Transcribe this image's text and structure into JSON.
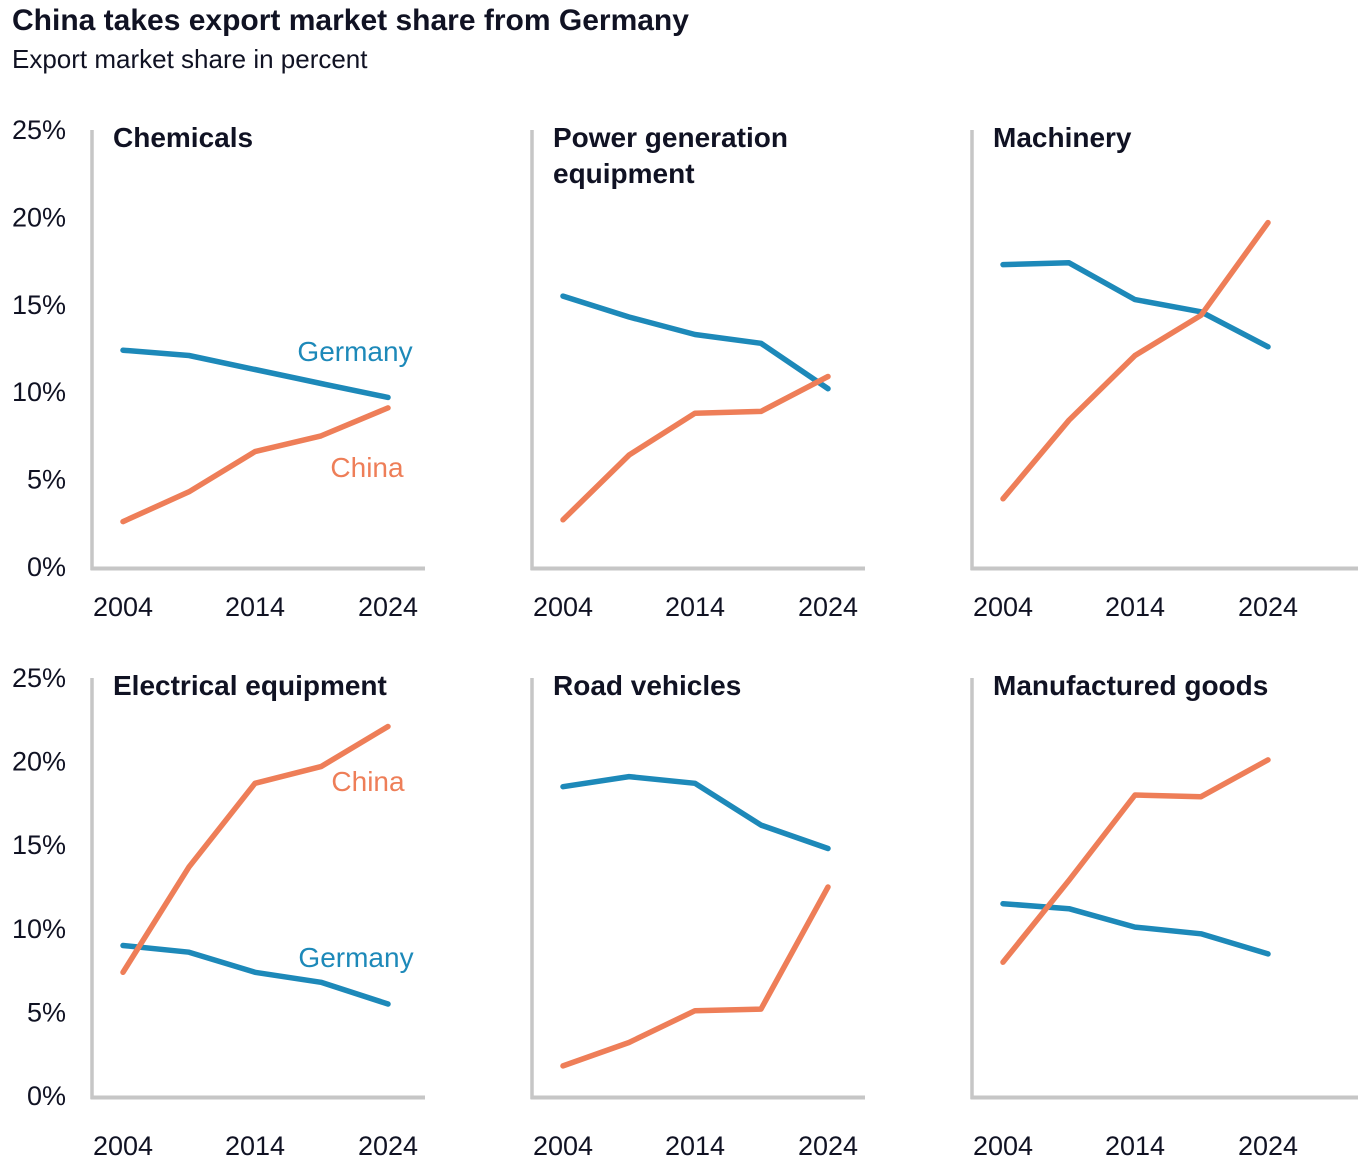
{
  "header": {
    "title": "China takes export market share from Germany",
    "subtitle": "Export market share in percent"
  },
  "colors": {
    "germany": "#1d89b9",
    "china": "#ee7e58",
    "axis": "#c6c6c6",
    "text": "#101223"
  },
  "chart_data": {
    "type": "line",
    "unit": "%",
    "x": [
      2004,
      2009,
      2014,
      2019,
      2024
    ],
    "x_ticks": [
      "2004",
      "2014",
      "2024"
    ],
    "y_ticks": [
      25,
      20,
      15,
      10,
      5,
      0
    ],
    "ylim": [
      0,
      25
    ],
    "legend_position": "inline",
    "grid": false,
    "panels": [
      {
        "title": "Chemicals",
        "series": [
          {
            "name": "Germany",
            "values": [
              12.4,
              12.1,
              11.3,
              10.5,
              9.7
            ]
          },
          {
            "name": "China",
            "values": [
              2.6,
              4.3,
              6.6,
              7.5,
              9.1
            ]
          }
        ],
        "labels": [
          {
            "text": "Germany",
            "series": "Germany",
            "x": 355,
            "y": 242
          },
          {
            "text": "China",
            "series": "China",
            "x": 367,
            "y": 358
          }
        ]
      },
      {
        "title": "Power generation\nequipment",
        "series": [
          {
            "name": "Germany",
            "values": [
              15.5,
              14.3,
              13.3,
              12.8,
              10.2
            ]
          },
          {
            "name": "China",
            "values": [
              2.7,
              6.4,
              8.8,
              8.9,
              10.9
            ]
          }
        ],
        "labels": []
      },
      {
        "title": "Machinery",
        "series": [
          {
            "name": "Germany",
            "values": [
              17.3,
              17.4,
              15.3,
              14.6,
              12.6
            ]
          },
          {
            "name": "China",
            "values": [
              3.9,
              8.4,
              12.1,
              14.4,
              19.7
            ]
          }
        ],
        "labels": []
      },
      {
        "title": "Electrical equipment",
        "series": [
          {
            "name": "Germany",
            "values": [
              9.0,
              8.6,
              7.4,
              6.8,
              5.5
            ]
          },
          {
            "name": "China",
            "values": [
              7.4,
              13.7,
              18.7,
              19.7,
              22.1
            ]
          }
        ],
        "labels": [
          {
            "text": "China",
            "series": "China",
            "x": 368,
            "y": 132
          },
          {
            "text": "Germany",
            "series": "Germany",
            "x": 356,
            "y": 308
          }
        ]
      },
      {
        "title": "Road vehicles",
        "series": [
          {
            "name": "Germany",
            "values": [
              18.5,
              19.1,
              18.7,
              16.2,
              14.8
            ]
          },
          {
            "name": "China",
            "values": [
              1.8,
              3.2,
              5.1,
              5.2,
              12.5
            ]
          }
        ],
        "labels": []
      },
      {
        "title": "Manufactured goods",
        "series": [
          {
            "name": "Germany",
            "values": [
              11.5,
              11.2,
              10.1,
              9.7,
              8.5
            ]
          },
          {
            "name": "China",
            "values": [
              8.0,
              12.9,
              18.0,
              17.9,
              20.1
            ]
          }
        ],
        "labels": []
      }
    ]
  }
}
